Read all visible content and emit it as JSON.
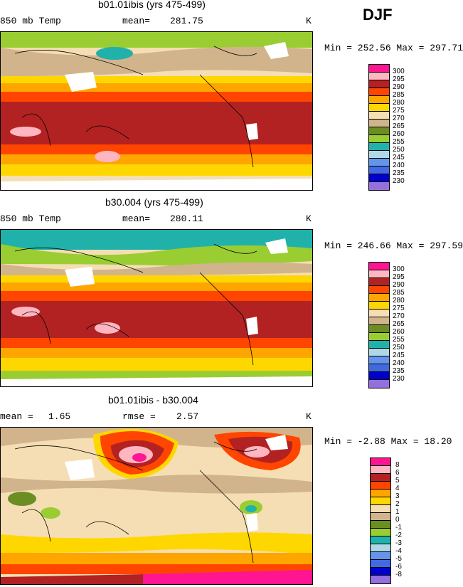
{
  "season": "DJF",
  "units": "K",
  "panels": [
    {
      "title": "b01.01ibis (yrs 475-499)",
      "left_label": "850 mb Temp",
      "stat_label": "mean=",
      "stat_value": "281.75",
      "minmax": "Min = 252.56 Max = 297.71",
      "legend": [
        "300",
        "295",
        "290",
        "285",
        "280",
        "275",
        "270",
        "265",
        "260",
        "255",
        "250",
        "245",
        "240",
        "235",
        "230"
      ],
      "colors": [
        "#ff1493",
        "#ffb6c1",
        "#b22222",
        "#ff4500",
        "#ffa500",
        "#ffd700",
        "#f5deb3",
        "#d2b48c",
        "#6b8e23",
        "#9acd32",
        "#20b2aa",
        "#add8e6",
        "#6495ed",
        "#4169e1",
        "#0000cd",
        "#9370db"
      ]
    },
    {
      "title": "b30.004 (yrs 475-499)",
      "left_label": "850 mb Temp",
      "stat_label": "mean=",
      "stat_value": "280.11",
      "minmax": "Min = 246.66 Max = 297.59",
      "legend": [
        "300",
        "295",
        "290",
        "285",
        "280",
        "275",
        "270",
        "265",
        "260",
        "255",
        "250",
        "245",
        "240",
        "235",
        "230"
      ],
      "colors": [
        "#ff1493",
        "#ffb6c1",
        "#b22222",
        "#ff4500",
        "#ffa500",
        "#ffd700",
        "#f5deb3",
        "#d2b48c",
        "#6b8e23",
        "#9acd32",
        "#20b2aa",
        "#add8e6",
        "#6495ed",
        "#4169e1",
        "#0000cd",
        "#9370db"
      ]
    },
    {
      "title": "b01.01ibis - b30.004",
      "left_label": "mean =",
      "left_value": "1.65",
      "stat_label": "rmse =",
      "stat_value": "2.57",
      "minmax": "Min =   -2.88 Max =   18.20",
      "legend": [
        "8",
        "6",
        "5",
        "4",
        "3",
        "2",
        "1",
        "0",
        "-1",
        "-2",
        "-3",
        "-4",
        "-5",
        "-6",
        "-8"
      ],
      "colors": [
        "#ff1493",
        "#ffb6c1",
        "#b22222",
        "#ff4500",
        "#ffa500",
        "#ffd700",
        "#f5deb3",
        "#d2b48c",
        "#6b8e23",
        "#9acd32",
        "#20b2aa",
        "#add8e6",
        "#6495ed",
        "#4169e1",
        "#0000cd",
        "#9370db"
      ]
    }
  ]
}
